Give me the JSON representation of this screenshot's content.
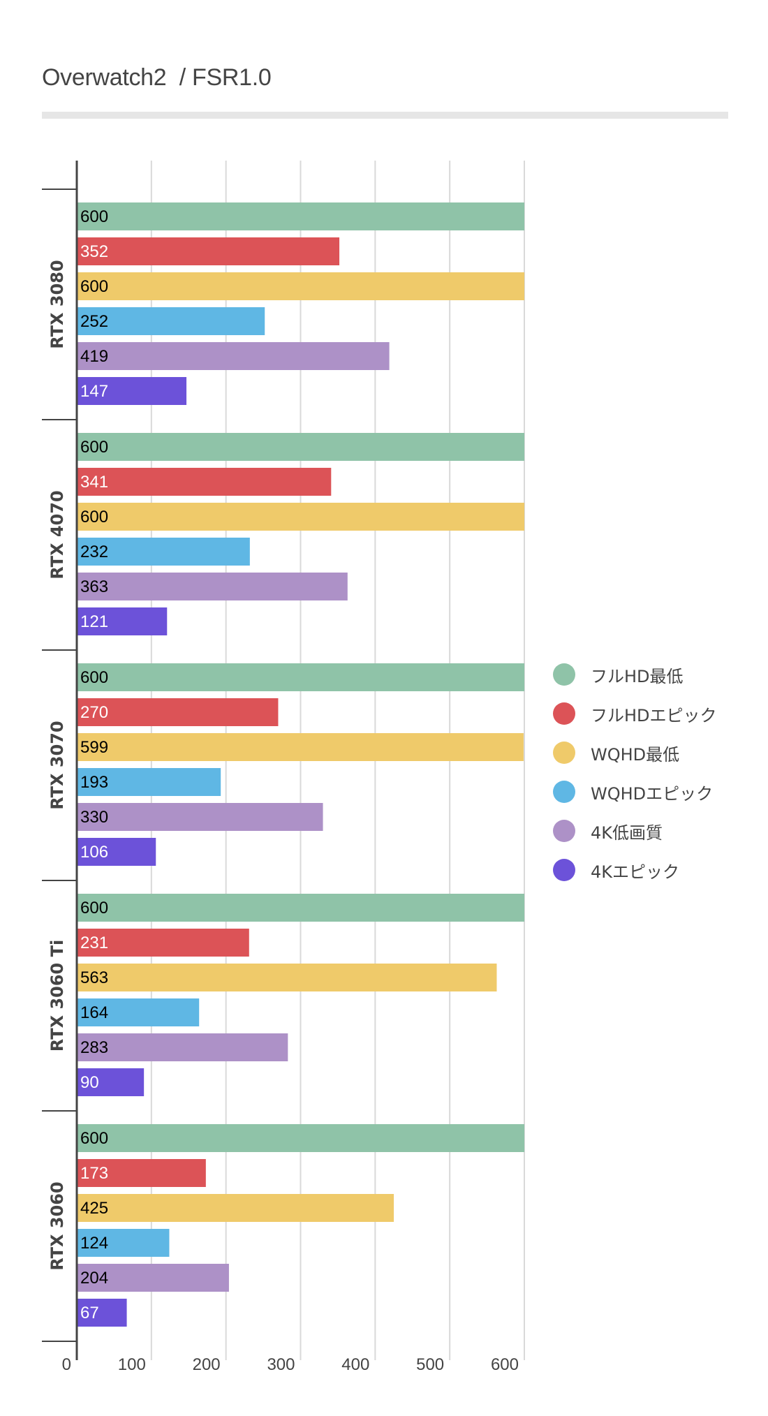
{
  "title": "Overwatch2  / FSR1.0",
  "chart_data": {
    "type": "bar",
    "orientation": "horizontal",
    "title": "Overwatch2  / FSR1.0",
    "xlabel": "",
    "ylabel": "",
    "xlim": [
      0,
      600
    ],
    "x_ticks": [
      "0",
      "100",
      "200",
      "300",
      "400",
      "500",
      "600"
    ],
    "x_tick_values": [
      0,
      100,
      200,
      300,
      400,
      500,
      600
    ],
    "grid": true,
    "legend_position": "right",
    "categories": [
      "RTX 3080",
      "RTX 4070",
      "RTX 3070",
      "RTX 3060 Ti",
      "RTX 3060"
    ],
    "series": [
      {
        "name": "フルHD最低",
        "color": "#8fc3a8",
        "label_color": "#000000",
        "values": [
          600,
          600,
          600,
          600,
          600
        ]
      },
      {
        "name": "フルHDエピック",
        "color": "#dc5357",
        "label_color": "#ffffff",
        "values": [
          352,
          341,
          270,
          231,
          173
        ]
      },
      {
        "name": "WQHD最低",
        "color": "#efca6a",
        "label_color": "#000000",
        "values": [
          600,
          600,
          599,
          563,
          425
        ]
      },
      {
        "name": "WQHDエピック",
        "color": "#5fb7e4",
        "label_color": "#000000",
        "values": [
          252,
          232,
          193,
          164,
          124
        ]
      },
      {
        "name": "4K低画質",
        "color": "#ad91c7",
        "label_color": "#000000",
        "values": [
          419,
          363,
          330,
          283,
          204
        ]
      },
      {
        "name": "4Kエピック",
        "color": "#6c52d9",
        "label_color": "#ffffff",
        "values": [
          147,
          121,
          106,
          90,
          67
        ]
      }
    ]
  }
}
